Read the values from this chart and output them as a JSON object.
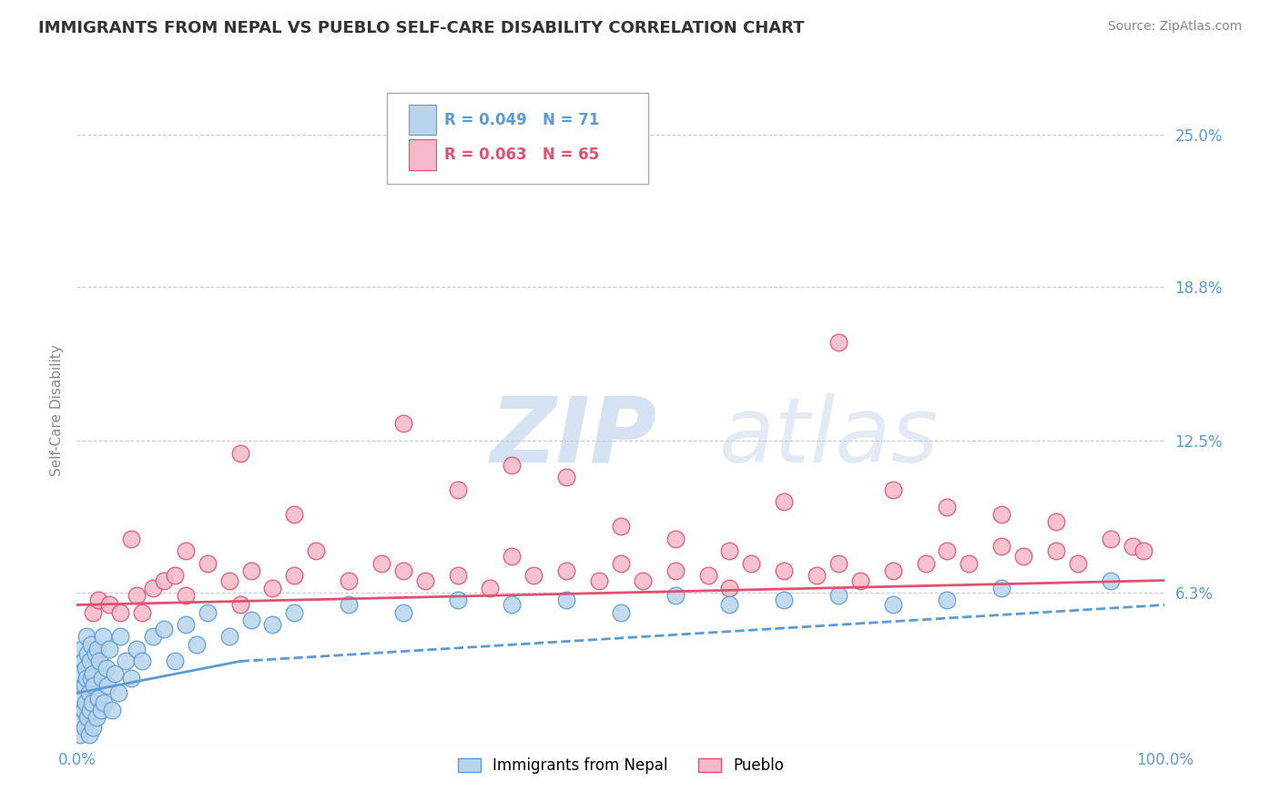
{
  "title": "IMMIGRANTS FROM NEPAL VS PUEBLO SELF-CARE DISABILITY CORRELATION CHART",
  "source": "Source: ZipAtlas.com",
  "ylabel": "Self-Care Disability",
  "watermark_zip": "ZIP",
  "watermark_atlas": "atlas",
  "legend_series1_label": "Immigrants from Nepal",
  "legend_series2_label": "Pueblo",
  "legend_series1_R": "R = 0.049",
  "legend_series1_N": "N = 71",
  "legend_series2_R": "R = 0.063",
  "legend_series2_N": "N = 65",
  "xlim": [
    0,
    100
  ],
  "ylim": [
    0,
    27.5
  ],
  "yticks": [
    0,
    6.3,
    12.5,
    18.8,
    25.0
  ],
  "ytick_labels": [
    "",
    "6.3%",
    "12.5%",
    "18.8%",
    "25.0%"
  ],
  "xtick_labels": [
    "0.0%",
    "100.0%"
  ],
  "color_series1_fill": "#b8d4ec",
  "color_series1_edge": "#5b9bd5",
  "color_series2_fill": "#f5b8c8",
  "color_series2_edge": "#e05070",
  "trendline_blue_color": "#5b9bd5",
  "trendline_pink_color": "#e05070",
  "background_color": "#ffffff",
  "grid_color": "#cccccc",
  "title_color": "#333333",
  "axis_label_color": "#5b9bd5",
  "ylabel_color": "#888888",
  "series1_x": [
    0.2,
    0.3,
    0.3,
    0.4,
    0.4,
    0.5,
    0.5,
    0.6,
    0.6,
    0.7,
    0.7,
    0.8,
    0.8,
    0.9,
    0.9,
    1.0,
    1.0,
    1.1,
    1.1,
    1.2,
    1.2,
    1.3,
    1.3,
    1.4,
    1.5,
    1.5,
    1.6,
    1.7,
    1.8,
    1.9,
    2.0,
    2.1,
    2.2,
    2.3,
    2.4,
    2.5,
    2.7,
    2.8,
    3.0,
    3.2,
    3.5,
    3.8,
    4.0,
    4.5,
    5.0,
    5.5,
    6.0,
    7.0,
    8.0,
    9.0,
    10.0,
    11.0,
    12.0,
    14.0,
    16.0,
    18.0,
    20.0,
    25.0,
    30.0,
    35.0,
    40.0,
    45.0,
    50.0,
    55.0,
    60.0,
    65.0,
    70.0,
    75.0,
    80.0,
    85.0,
    95.0
  ],
  "series1_y": [
    1.5,
    2.5,
    0.5,
    3.0,
    1.0,
    2.0,
    4.0,
    1.5,
    3.5,
    2.5,
    0.8,
    3.2,
    1.8,
    2.8,
    4.5,
    1.2,
    3.8,
    2.2,
    0.5,
    3.5,
    1.5,
    2.8,
    4.2,
    1.8,
    3.0,
    0.8,
    2.5,
    3.8,
    1.2,
    4.0,
    2.0,
    3.5,
    1.5,
    2.8,
    4.5,
    1.8,
    3.2,
    2.5,
    4.0,
    1.5,
    3.0,
    2.2,
    4.5,
    3.5,
    2.8,
    4.0,
    3.5,
    4.5,
    4.8,
    3.5,
    5.0,
    4.2,
    5.5,
    4.5,
    5.2,
    5.0,
    5.5,
    5.8,
    5.5,
    6.0,
    5.8,
    6.0,
    5.5,
    6.2,
    5.8,
    6.0,
    6.2,
    5.8,
    6.0,
    6.5,
    6.8
  ],
  "series2_x": [
    1.5,
    2.0,
    3.0,
    4.0,
    5.5,
    6.0,
    7.0,
    8.0,
    9.0,
    10.0,
    12.0,
    14.0,
    15.0,
    16.0,
    18.0,
    20.0,
    22.0,
    25.0,
    28.0,
    30.0,
    32.0,
    35.0,
    38.0,
    40.0,
    42.0,
    45.0,
    48.0,
    50.0,
    52.0,
    55.0,
    58.0,
    60.0,
    62.0,
    65.0,
    68.0,
    70.0,
    72.0,
    75.0,
    78.0,
    80.0,
    82.0,
    85.0,
    87.0,
    90.0,
    92.0,
    95.0,
    97.0,
    98.0,
    5.0,
    10.0,
    20.0,
    35.0,
    50.0,
    65.0,
    75.0,
    85.0,
    90.0,
    55.0,
    45.0,
    70.0,
    80.0,
    60.0,
    40.0,
    30.0,
    15.0
  ],
  "series2_y": [
    5.5,
    6.0,
    5.8,
    5.5,
    6.2,
    5.5,
    6.5,
    6.8,
    7.0,
    6.2,
    7.5,
    6.8,
    5.8,
    7.2,
    6.5,
    7.0,
    8.0,
    6.8,
    7.5,
    7.2,
    6.8,
    7.0,
    6.5,
    7.8,
    7.0,
    7.2,
    6.8,
    7.5,
    6.8,
    7.2,
    7.0,
    6.5,
    7.5,
    7.2,
    7.0,
    7.5,
    6.8,
    7.2,
    7.5,
    8.0,
    7.5,
    8.2,
    7.8,
    8.0,
    7.5,
    8.5,
    8.2,
    8.0,
    8.5,
    8.0,
    9.5,
    10.5,
    9.0,
    10.0,
    10.5,
    9.5,
    9.2,
    8.5,
    11.0,
    16.5,
    9.8,
    8.0,
    11.5,
    13.2,
    12.0
  ],
  "trendline_s1_x0": 0,
  "trendline_s1_y0": 2.2,
  "trendline_s1_x1": 15,
  "trendline_s1_y1": 3.5,
  "trendline_s1_dash_x0": 15,
  "trendline_s1_dash_y0": 3.5,
  "trendline_s1_dash_x1": 100,
  "trendline_s1_dash_y1": 5.8,
  "trendline_s2_x0": 0,
  "trendline_s2_y0": 5.8,
  "trendline_s2_x1": 100,
  "trendline_s2_y1": 6.8
}
